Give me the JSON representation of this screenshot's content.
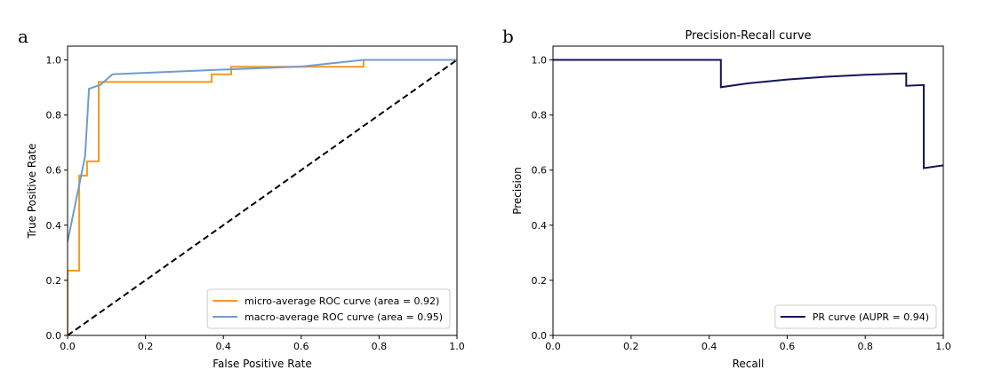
{
  "chart_data": [
    {
      "panel_letter": "a",
      "type": "line",
      "title": "",
      "xlabel": "False Positive Rate",
      "ylabel": "True Positive Rate",
      "xlim": [
        0.0,
        1.0
      ],
      "ylim": [
        0.0,
        1.05
      ],
      "xticks": [
        "0.0",
        "0.2",
        "0.4",
        "0.6",
        "0.8",
        "1.0"
      ],
      "yticks": [
        "0.0",
        "0.2",
        "0.4",
        "0.6",
        "0.8",
        "1.0"
      ],
      "grid": false,
      "legend_position": "lower-right",
      "series": [
        {
          "name": "micro-average ROC curve (area = 0.92)",
          "color": "#f29a1f",
          "style": "solid",
          "x": [
            0,
            0,
            0.03,
            0.03,
            0.05,
            0.05,
            0.08,
            0.08,
            0.37,
            0.37,
            0.42,
            0.42,
            0.76,
            0.76,
            1.0
          ],
          "y": [
            0,
            0.235,
            0.235,
            0.58,
            0.58,
            0.632,
            0.632,
            0.92,
            0.92,
            0.948,
            0.948,
            0.975,
            0.975,
            1.0,
            1.0
          ]
        },
        {
          "name": "macro-average ROC curve (area = 0.95)",
          "color": "#6f9ccf",
          "style": "solid",
          "x": [
            0,
            0.045,
            0.055,
            0.085,
            0.115,
            0.42,
            0.6,
            0.76,
            1.0
          ],
          "y": [
            0.34,
            0.65,
            0.895,
            0.91,
            0.948,
            0.966,
            0.976,
            1.0,
            1.0
          ]
        },
        {
          "name": "",
          "color": "#000000",
          "style": "dashed",
          "x": [
            0,
            1
          ],
          "y": [
            0,
            1
          ]
        }
      ]
    },
    {
      "panel_letter": "b",
      "type": "line",
      "title": "Precision-Recall curve",
      "xlabel": "Recall",
      "ylabel": "Precision",
      "xlim": [
        0.0,
        1.0
      ],
      "ylim": [
        0.0,
        1.05
      ],
      "xticks": [
        "0.0",
        "0.2",
        "0.4",
        "0.6",
        "0.8",
        "1.0"
      ],
      "yticks": [
        "0.0",
        "0.2",
        "0.4",
        "0.6",
        "0.8",
        "1.0"
      ],
      "grid": false,
      "legend_position": "lower-right",
      "series": [
        {
          "name": "PR curve (AUPR = 0.94)",
          "color": "#14145a",
          "style": "solid",
          "x": [
            0,
            0.43,
            0.43,
            0.5,
            0.6,
            0.7,
            0.8,
            0.905,
            0.905,
            0.95,
            0.95,
            1.0
          ],
          "y": [
            1.0,
            1.0,
            0.901,
            0.915,
            0.929,
            0.939,
            0.946,
            0.951,
            0.906,
            0.909,
            0.607,
            0.617
          ]
        }
      ]
    }
  ]
}
